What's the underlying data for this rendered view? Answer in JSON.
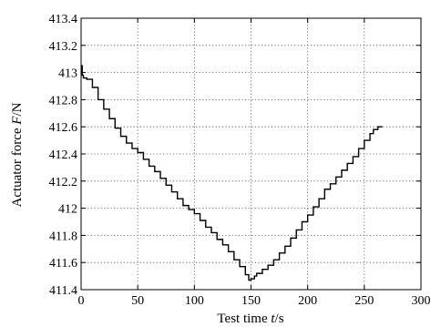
{
  "chart_data": {
    "type": "line",
    "title": "",
    "xlabel_text": "Test time ",
    "xlabel_var": "t",
    "xlabel_unit": "/s",
    "ylabel_text": "Actuator force ",
    "ylabel_var": "F",
    "ylabel_unit": "/N",
    "xlim": [
      0,
      300
    ],
    "ylim": [
      411.4,
      413.4
    ],
    "x_ticks": [
      0,
      50,
      100,
      150,
      200,
      250,
      300
    ],
    "y_ticks": [
      411.4,
      411.6,
      411.8,
      412,
      412.2,
      412.4,
      412.6,
      412.8,
      413,
      413.2,
      413.4
    ],
    "x_tick_labels": [
      "0",
      "50",
      "100",
      "150",
      "200",
      "250",
      "300"
    ],
    "y_tick_labels": [
      "411.4",
      "411.6",
      "411.8",
      "412",
      "412.2",
      "412.4",
      "412.6",
      "412.8",
      "413",
      "413.2",
      "413.4"
    ],
    "grid": true,
    "grid_style": "dotted",
    "legend": "none",
    "series": [
      {
        "color": "#000000",
        "x": [
          0,
          1,
          2,
          5,
          10,
          15,
          20,
          25,
          30,
          35,
          40,
          45,
          50,
          55,
          60,
          65,
          70,
          75,
          80,
          85,
          90,
          95,
          100,
          105,
          110,
          115,
          120,
          125,
          130,
          135,
          140,
          145,
          148,
          150,
          153,
          155,
          160,
          165,
          170,
          175,
          180,
          185,
          190,
          195,
          200,
          205,
          210,
          215,
          220,
          225,
          230,
          235,
          240,
          245,
          250,
          255,
          258,
          262,
          266
        ],
        "y": [
          413.05,
          412.98,
          412.96,
          412.95,
          412.89,
          412.8,
          412.73,
          412.66,
          412.59,
          412.53,
          412.48,
          412.44,
          412.41,
          412.36,
          412.31,
          412.27,
          412.22,
          412.17,
          412.12,
          412.07,
          412.02,
          411.99,
          411.96,
          411.91,
          411.86,
          411.82,
          411.77,
          411.73,
          411.68,
          411.62,
          411.57,
          411.51,
          411.47,
          411.48,
          411.5,
          411.52,
          411.55,
          411.58,
          411.62,
          411.67,
          411.72,
          411.78,
          411.84,
          411.9,
          411.95,
          412.01,
          412.07,
          412.14,
          412.18,
          412.23,
          412.28,
          412.33,
          412.38,
          412.44,
          412.5,
          412.55,
          412.58,
          412.6,
          412.6
        ]
      }
    ]
  }
}
